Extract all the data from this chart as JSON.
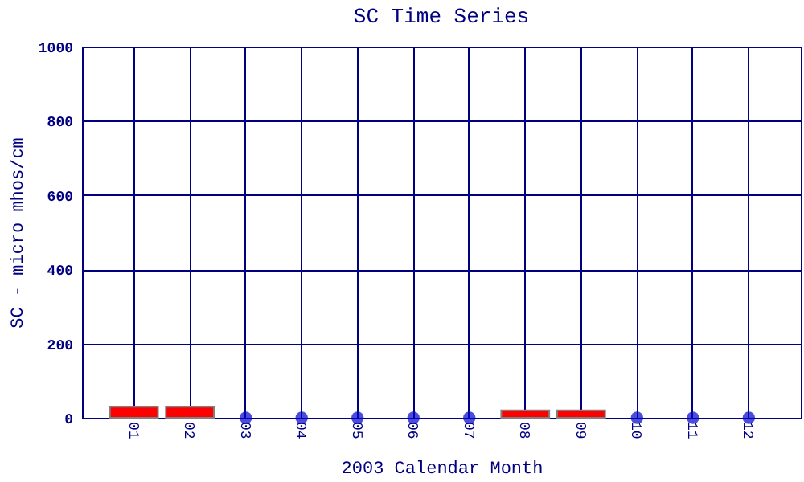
{
  "chart_data": {
    "type": "bar",
    "title": "SC Time Series",
    "xlabel": "2003 Calendar Month",
    "ylabel": "SC - micro mhos/cm",
    "categories": [
      "01",
      "02",
      "03",
      "04",
      "05",
      "06",
      "07",
      "08",
      "09",
      "10",
      "11",
      "12"
    ],
    "series": [
      {
        "color": "#ff0000",
        "values": [
          30,
          30,
          null,
          null,
          null,
          null,
          null,
          20,
          20,
          null,
          null,
          null
        ]
      },
      {
        "type": "scatter",
        "color": "#0000cc",
        "values": [
          null,
          null,
          0,
          0,
          0,
          0,
          0,
          null,
          null,
          0,
          0,
          0
        ]
      }
    ],
    "ylim": [
      0,
      1000
    ],
    "yticks": [
      0,
      200,
      400,
      600,
      800,
      1000
    ],
    "grid": true,
    "marker": "circle"
  }
}
